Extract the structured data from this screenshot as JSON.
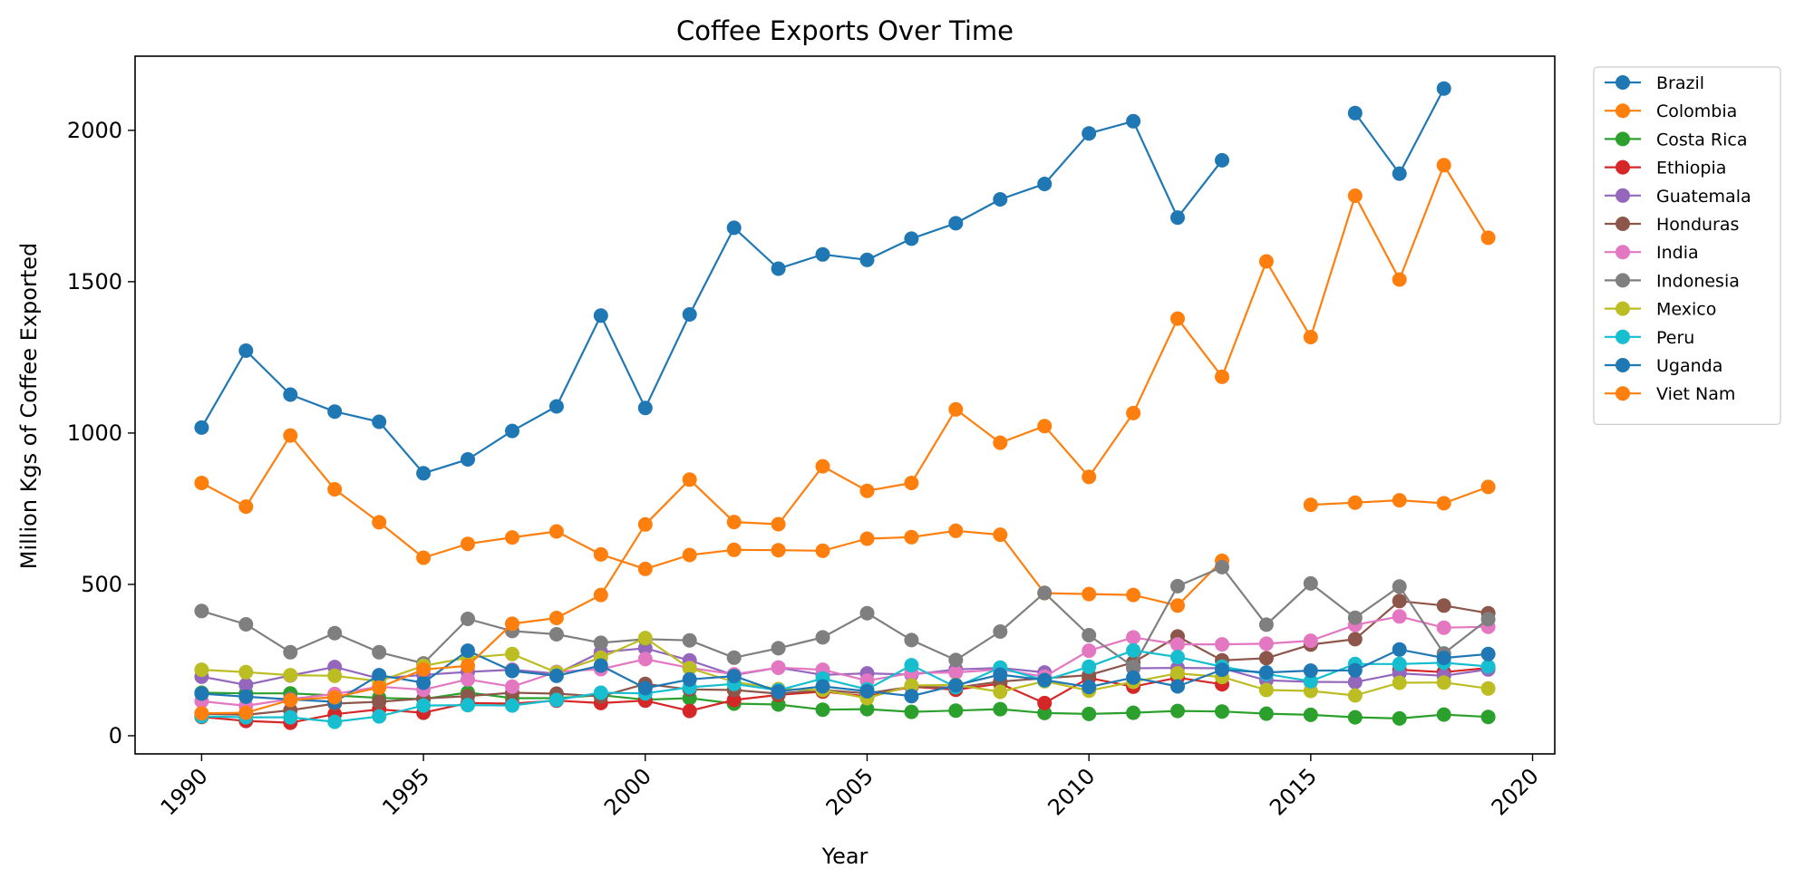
{
  "chart_data": {
    "type": "line",
    "title": "Coffee Exports Over Time",
    "xlabel": "Year",
    "ylabel": "Million Kgs of Coffee Exported",
    "xlim": [
      1988.5,
      2020.5
    ],
    "ylim": [
      -60,
      2245
    ],
    "x_ticks": [
      1990,
      1995,
      2000,
      2005,
      2010,
      2015,
      2020
    ],
    "y_ticks": [
      0,
      500,
      1000,
      1500,
      2000
    ],
    "grid": false,
    "legend_position": "outside-top-right",
    "x": [
      1990,
      1991,
      1992,
      1993,
      1994,
      1995,
      1996,
      1997,
      1998,
      1999,
      2000,
      2001,
      2002,
      2003,
      2004,
      2005,
      2006,
      2007,
      2008,
      2009,
      2010,
      2011,
      2012,
      2013,
      2014,
      2015,
      2016,
      2017,
      2018,
      2019
    ],
    "series": [
      {
        "name": "Brazil",
        "color": "#1f77b4",
        "values": [
          1018,
          1272,
          1127,
          1071,
          1037,
          867,
          913,
          1007,
          1088,
          1388,
          1083,
          1392,
          1678,
          1543,
          1590,
          1572,
          1642,
          1693,
          1772,
          1823,
          1990,
          2030,
          1712,
          1901,
          null,
          null,
          2057,
          1857,
          2138,
          null
        ]
      },
      {
        "name": "Colombia",
        "color": "#ff7f0e",
        "values": [
          835,
          757,
          992,
          814,
          705,
          588,
          634,
          655,
          675,
          599,
          551,
          597,
          614,
          613,
          611,
          651,
          656,
          677,
          664,
          471,
          468,
          465,
          430,
          578,
          null,
          763,
          770,
          778,
          768,
          822
        ]
      },
      {
        "name": "Costa Rica",
        "color": "#2ca02c",
        "values": [
          142,
          140,
          140,
          133,
          125,
          121,
          143,
          124,
          124,
          134,
          119,
          124,
          106,
          103,
          86,
          88,
          79,
          83,
          88,
          75,
          72,
          76,
          82,
          80,
          73,
          69,
          61,
          57,
          70,
          62
        ]
      },
      {
        "name": "Ethiopia",
        "color": "#d62728",
        "values": [
          62,
          49,
          43,
          71,
          87,
          76,
          108,
          106,
          116,
          108,
          116,
          82,
          118,
          135,
          146,
          130,
          162,
          152,
          172,
          108,
          191,
          162,
          192,
          170,
          null,
          null,
          null,
          218,
          210,
          224
        ]
      },
      {
        "name": "Guatemala",
        "color": "#9467bd",
        "values": [
          195,
          168,
          199,
          227,
          189,
          201,
          211,
          218,
          205,
          276,
          289,
          249,
          200,
          225,
          201,
          206,
          202,
          219,
          224,
          209,
          null,
          223,
          224,
          223,
          183,
          178,
          177,
          206,
          198,
          219
        ]
      },
      {
        "name": "Honduras",
        "color": "#8c564b",
        "values": [
          73,
          69,
          84,
          106,
          112,
          123,
          131,
          142,
          139,
          130,
          171,
          153,
          151,
          139,
          151,
          140,
          162,
          159,
          179,
          190,
          200,
          242,
          328,
          249,
          256,
          301,
          319,
          445,
          430,
          405
        ]
      },
      {
        "name": "India",
        "color": "#e377c2",
        "values": [
          114,
          99,
          121,
          138,
          162,
          152,
          186,
          162,
          211,
          220,
          253,
          224,
          203,
          225,
          218,
          182,
          207,
          209,
          219,
          195,
          281,
          325,
          302,
          302,
          304,
          314,
          366,
          394,
          357,
          360
        ]
      },
      {
        "name": "Indonesia",
        "color": "#7f7f7f",
        "values": [
          412,
          368,
          276,
          339,
          276,
          239,
          386,
          346,
          335,
          307,
          319,
          315,
          258,
          289,
          325,
          405,
          316,
          250,
          344,
          472,
          332,
          228,
          494,
          557,
          367,
          503,
          390,
          493,
          272,
          385
        ]
      },
      {
        "name": "Mexico",
        "color": "#bcbd22",
        "values": [
          218,
          210,
          200,
          198,
          180,
          231,
          258,
          270,
          209,
          258,
          323,
          223,
          178,
          154,
          151,
          124,
          166,
          168,
          145,
          180,
          149,
          178,
          206,
          194,
          151,
          148,
          133,
          175,
          176,
          156
        ]
      },
      {
        "name": "Peru",
        "color": "#17becf",
        "values": [
          64,
          61,
          61,
          46,
          64,
          100,
          101,
          100,
          118,
          142,
          140,
          160,
          171,
          150,
          189,
          153,
          233,
          161,
          225,
          183,
          228,
          282,
          260,
          228,
          204,
          180,
          237,
          237,
          241,
          229
        ]
      },
      {
        "name": "Uganda",
        "color": "#1f77b4",
        "values": [
          139,
          129,
          120,
          112,
          200,
          175,
          281,
          214,
          198,
          232,
          157,
          186,
          197,
          146,
          163,
          147,
          131,
          167,
          202,
          184,
          161,
          192,
          163,
          218,
          209,
          215,
          216,
          285,
          257,
          270
        ]
      },
      {
        "name": "Viet Nam",
        "color": "#ff7f0e",
        "values": [
          74,
          76,
          118,
          127,
          159,
          219,
          231,
          370,
          389,
          465,
          698,
          846,
          706,
          699,
          890,
          809,
          835,
          1078,
          968,
          1023,
          855,
          1066,
          1378,
          1186,
          1567,
          1317,
          1784,
          1507,
          1885,
          1645
        ]
      }
    ]
  }
}
